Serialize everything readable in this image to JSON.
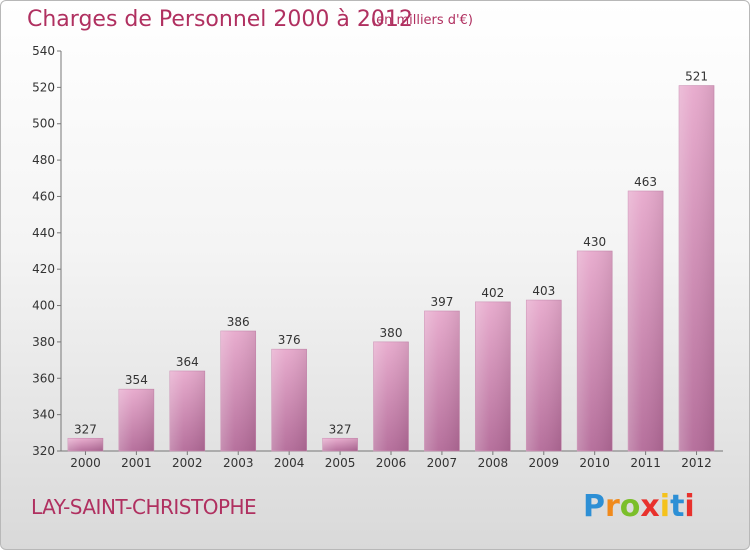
{
  "title": "Charges de Personnel 2000 à 2012",
  "subtitle": "(en milliers d'€)",
  "commune": "LAY-SAINT-CHRISTOPHE",
  "brand": {
    "letters": [
      "P",
      "r",
      "o",
      "x",
      "i",
      "t",
      "i"
    ],
    "colors": [
      "#2d8fd5",
      "#f08a1c",
      "#7bbf2a",
      "#e8312c",
      "#f5c21b",
      "#2d8fd5",
      "#e8312c"
    ]
  },
  "colors": {
    "bar_top": "#e7a9cc",
    "bar_bottom": "#b36a98",
    "text_accent": "#b03060"
  },
  "chart_data": {
    "type": "bar",
    "categories": [
      "2000",
      "2001",
      "2002",
      "2003",
      "2004",
      "2005",
      "2006",
      "2007",
      "2008",
      "2009",
      "2010",
      "2011",
      "2012"
    ],
    "values": [
      327,
      354,
      364,
      386,
      376,
      327,
      380,
      397,
      402,
      403,
      430,
      463,
      521
    ],
    "title": "Charges de Personnel 2000 à 2012",
    "ylim": [
      320,
      540
    ],
    "yticks": [
      320,
      340,
      360,
      380,
      400,
      420,
      440,
      460,
      480,
      500,
      520,
      540
    ],
    "grid": false,
    "data_labels": true
  }
}
